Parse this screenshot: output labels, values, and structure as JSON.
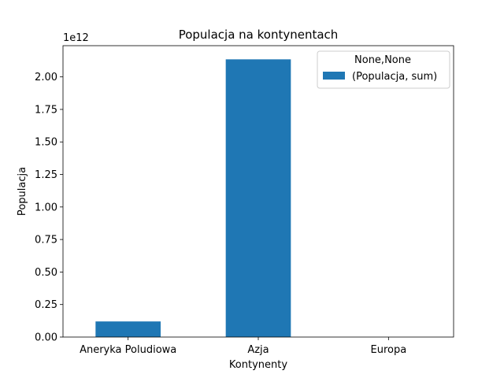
{
  "chart_data": {
    "type": "bar",
    "title": "Populacja na kontynentach",
    "xlabel": "Kontynenty",
    "ylabel": "Populacja",
    "offset_text": "1e12",
    "categories": [
      "Aneryka Poludiowa",
      "Azja",
      "Europa"
    ],
    "series": [
      {
        "name": "(Populacja, sum)",
        "values": [
          0.12,
          2.135,
          0.0
        ],
        "color": "#1f77b4"
      }
    ],
    "value_scale": 1000000000000.0,
    "ylim": [
      0,
      2.24
    ],
    "yticks": [
      0.0,
      0.25,
      0.5,
      0.75,
      1.0,
      1.25,
      1.5,
      1.75,
      2.0
    ],
    "ytick_labels": [
      "0.00",
      "0.25",
      "0.50",
      "0.75",
      "1.00",
      "1.25",
      "1.50",
      "1.75",
      "2.00"
    ],
    "legend": {
      "title": "None,None",
      "position": "top-right"
    },
    "grid": false
  }
}
